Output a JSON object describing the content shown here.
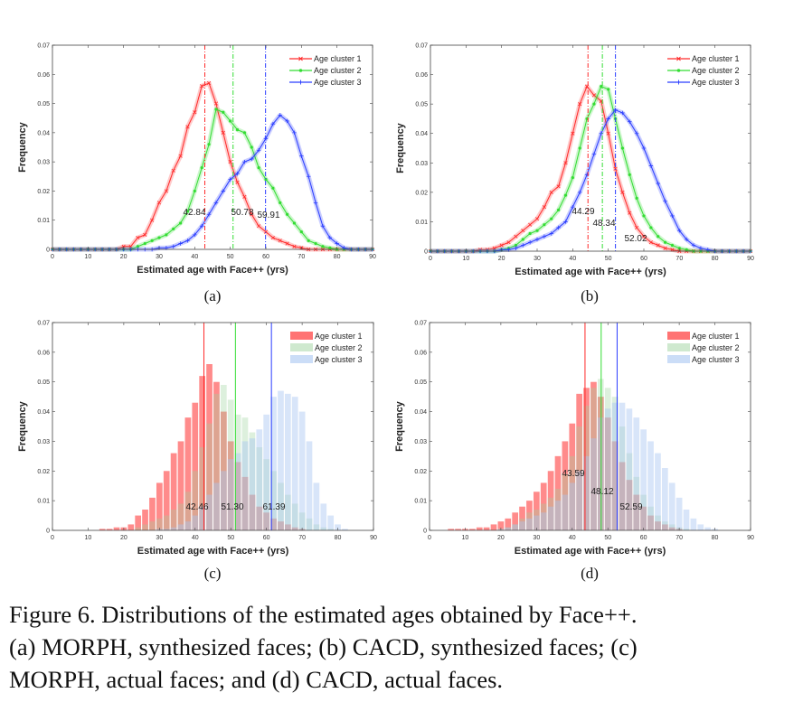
{
  "caption": {
    "lines": [
      "Figure 6. Distributions of the estimated ages obtained by Face++.",
      "(a) MORPH, synthesized faces; (b) CACD, synthesized faces; (c)",
      "MORPH, actual faces; and (d) CACD, actual faces."
    ]
  },
  "colors": {
    "cluster1": "#ff2a2a",
    "cluster2": "#33dd33",
    "cluster3": "#2a3dff"
  },
  "chart_data": [
    {
      "panel": "(a)",
      "type": "line",
      "xlabel": "Estimated age with Face++ (yrs)",
      "ylabel": "Frequency",
      "xlim": [
        0,
        90
      ],
      "ylim": [
        0,
        0.07
      ],
      "xticks": [
        "0",
        "10",
        "20",
        "30",
        "40",
        "50",
        "60",
        "70",
        "80",
        "90"
      ],
      "yticks": [
        "0",
        "0.01",
        "0.02",
        "0.03",
        "0.04",
        "0.05",
        "0.06",
        "0.07"
      ],
      "legend_position": "top-right",
      "x": [
        0,
        2,
        4,
        6,
        8,
        10,
        12,
        14,
        16,
        18,
        20,
        22,
        24,
        26,
        28,
        30,
        32,
        34,
        36,
        38,
        40,
        42,
        44,
        46,
        48,
        50,
        52,
        54,
        56,
        58,
        60,
        62,
        64,
        66,
        68,
        70,
        72,
        74,
        76,
        78,
        80,
        82,
        84,
        86,
        88,
        90
      ],
      "series": [
        {
          "name": "Age cluster 1",
          "marker": "x",
          "mean": "42.84",
          "values": [
            0,
            0,
            0,
            0,
            0,
            0,
            0,
            0,
            0,
            0,
            0.001,
            0.001,
            0.004,
            0.005,
            0.01,
            0.016,
            0.02,
            0.027,
            0.032,
            0.042,
            0.047,
            0.056,
            0.057,
            0.05,
            0.04,
            0.03,
            0.023,
            0.018,
            0.012,
            0.008,
            0.006,
            0.004,
            0.003,
            0.002,
            0.001,
            0.0005,
            0,
            0,
            0,
            0,
            0,
            0,
            0,
            0,
            0,
            0
          ]
        },
        {
          "name": "Age cluster 2",
          "marker": "dot",
          "mean": "50.78",
          "values": [
            0,
            0,
            0,
            0,
            0,
            0,
            0,
            0,
            0,
            0,
            0,
            0,
            0.001,
            0.002,
            0.003,
            0.004,
            0.005,
            0.007,
            0.009,
            0.013,
            0.02,
            0.028,
            0.036,
            0.048,
            0.047,
            0.044,
            0.041,
            0.04,
            0.035,
            0.028,
            0.024,
            0.021,
            0.016,
            0.012,
            0.009,
            0.006,
            0.003,
            0.002,
            0.001,
            0.0005,
            0,
            0,
            0,
            0,
            0,
            0
          ]
        },
        {
          "name": "Age cluster 3",
          "marker": "plus",
          "mean": "59.91",
          "values": [
            0,
            0,
            0,
            0,
            0,
            0,
            0,
            0,
            0,
            0,
            0,
            0,
            0,
            0,
            0,
            0.0005,
            0.0005,
            0.001,
            0.002,
            0.003,
            0.005,
            0.008,
            0.012,
            0.016,
            0.02,
            0.024,
            0.026,
            0.03,
            0.031,
            0.034,
            0.038,
            0.043,
            0.046,
            0.044,
            0.04,
            0.032,
            0.025,
            0.016,
            0.008,
            0.004,
            0.002,
            0.0005,
            0,
            0,
            0,
            0
          ]
        }
      ]
    },
    {
      "panel": "(b)",
      "type": "line",
      "xlabel": "Estimated age with Face++ (yrs)",
      "ylabel": "Frequency",
      "xlim": [
        0,
        90
      ],
      "ylim": [
        0,
        0.07
      ],
      "xticks": [
        "0",
        "10",
        "20",
        "30",
        "40",
        "50",
        "60",
        "70",
        "80",
        "90"
      ],
      "yticks": [
        "0",
        "0.01",
        "0.02",
        "0.03",
        "0.04",
        "0.05",
        "0.06",
        "0.07"
      ],
      "legend_position": "top-right",
      "x": [
        0,
        2,
        4,
        6,
        8,
        10,
        12,
        14,
        16,
        18,
        20,
        22,
        24,
        26,
        28,
        30,
        32,
        34,
        36,
        38,
        40,
        42,
        44,
        46,
        48,
        50,
        52,
        54,
        56,
        58,
        60,
        62,
        64,
        66,
        68,
        70,
        72,
        74,
        76,
        78,
        80,
        82,
        84,
        86,
        88,
        90
      ],
      "series": [
        {
          "name": "Age cluster 1",
          "marker": "x",
          "mean": "44.29",
          "values": [
            0,
            0,
            0,
            0,
            0,
            0,
            0,
            0.0005,
            0.0005,
            0.001,
            0.002,
            0.003,
            0.005,
            0.007,
            0.009,
            0.011,
            0.015,
            0.02,
            0.022,
            0.03,
            0.04,
            0.05,
            0.056,
            0.053,
            0.051,
            0.04,
            0.028,
            0.02,
            0.013,
            0.008,
            0.005,
            0.003,
            0.002,
            0.001,
            0.0005,
            0,
            0,
            0,
            0,
            0,
            0,
            0,
            0,
            0,
            0,
            0
          ]
        },
        {
          "name": "Age cluster 2",
          "marker": "dot",
          "mean": "48.34",
          "values": [
            0,
            0,
            0,
            0,
            0,
            0,
            0,
            0,
            0,
            0,
            0.0005,
            0.001,
            0.002,
            0.004,
            0.006,
            0.007,
            0.009,
            0.011,
            0.014,
            0.019,
            0.025,
            0.035,
            0.045,
            0.05,
            0.056,
            0.055,
            0.045,
            0.035,
            0.026,
            0.018,
            0.012,
            0.008,
            0.005,
            0.003,
            0.002,
            0.001,
            0.0005,
            0,
            0,
            0,
            0,
            0,
            0,
            0,
            0,
            0
          ]
        },
        {
          "name": "Age cluster 3",
          "marker": "plus",
          "mean": "52.02",
          "values": [
            0,
            0,
            0,
            0,
            0,
            0,
            0,
            0,
            0,
            0,
            0.0005,
            0.0005,
            0.001,
            0.002,
            0.003,
            0.004,
            0.005,
            0.006,
            0.008,
            0.01,
            0.015,
            0.02,
            0.026,
            0.033,
            0.04,
            0.045,
            0.048,
            0.047,
            0.044,
            0.04,
            0.035,
            0.029,
            0.023,
            0.017,
            0.012,
            0.007,
            0.004,
            0.002,
            0.001,
            0.0005,
            0,
            0,
            0,
            0,
            0,
            0
          ]
        }
      ]
    },
    {
      "panel": "(c)",
      "type": "bar",
      "xlabel": "Estimated age with Face++ (yrs)",
      "ylabel": "Frequency",
      "xlim": [
        0,
        90
      ],
      "ylim": [
        0,
        0.07
      ],
      "xticks": [
        "0",
        "10",
        "20",
        "30",
        "40",
        "50",
        "60",
        "70",
        "80",
        "90"
      ],
      "yticks": [
        "0",
        "0.01",
        "0.02",
        "0.03",
        "0.04",
        "0.05",
        "0.06",
        "0.07"
      ],
      "legend_position": "top-right",
      "x": [
        0,
        2,
        4,
        6,
        8,
        10,
        12,
        14,
        16,
        18,
        20,
        22,
        24,
        26,
        28,
        30,
        32,
        34,
        36,
        38,
        40,
        42,
        44,
        46,
        48,
        50,
        52,
        54,
        56,
        58,
        60,
        62,
        64,
        66,
        68,
        70,
        72,
        74,
        76,
        78,
        80,
        82,
        84,
        86,
        88,
        90
      ],
      "series": [
        {
          "name": "Age cluster 1",
          "mean": "42.46",
          "values": [
            0,
            0,
            0,
            0,
            0,
            0,
            0,
            0.0005,
            0.0005,
            0.001,
            0.001,
            0.002,
            0.005,
            0.007,
            0.011,
            0.016,
            0.02,
            0.026,
            0.03,
            0.038,
            0.043,
            0.052,
            0.056,
            0.05,
            0.04,
            0.03,
            0.023,
            0.018,
            0.012,
            0.008,
            0.006,
            0.004,
            0.003,
            0.002,
            0.001,
            0.0005,
            0,
            0,
            0,
            0,
            0,
            0,
            0,
            0,
            0,
            0
          ]
        },
        {
          "name": "Age cluster 2",
          "mean": "51.30",
          "values": [
            0,
            0,
            0,
            0,
            0,
            0,
            0,
            0,
            0,
            0,
            0,
            0,
            0.001,
            0.002,
            0.003,
            0.004,
            0.005,
            0.007,
            0.009,
            0.013,
            0.02,
            0.028,
            0.036,
            0.046,
            0.049,
            0.044,
            0.039,
            0.038,
            0.033,
            0.028,
            0.024,
            0.02,
            0.016,
            0.012,
            0.009,
            0.006,
            0.004,
            0.002,
            0.001,
            0.0005,
            0,
            0,
            0,
            0,
            0,
            0
          ]
        },
        {
          "name": "Age cluster 3",
          "mean": "61.39",
          "values": [
            0,
            0,
            0,
            0,
            0,
            0,
            0,
            0,
            0,
            0,
            0,
            0,
            0,
            0,
            0,
            0.0005,
            0.0005,
            0.001,
            0.002,
            0.003,
            0.005,
            0.008,
            0.012,
            0.016,
            0.02,
            0.024,
            0.026,
            0.03,
            0.031,
            0.034,
            0.039,
            0.045,
            0.047,
            0.046,
            0.045,
            0.04,
            0.03,
            0.016,
            0.009,
            0.005,
            0.002,
            0.0005,
            0,
            0,
            0,
            0
          ]
        }
      ]
    },
    {
      "panel": "(d)",
      "type": "bar",
      "xlabel": "Estimated age with Face++ (yrs)",
      "ylabel": "Frequency",
      "xlim": [
        0,
        90
      ],
      "ylim": [
        0,
        0.07
      ],
      "xticks": [
        "0",
        "10",
        "20",
        "30",
        "40",
        "50",
        "60",
        "70",
        "80",
        "90"
      ],
      "yticks": [
        "0",
        "0.01",
        "0.02",
        "0.03",
        "0.04",
        "0.05",
        "0.06",
        "0.07"
      ],
      "legend_position": "top-right",
      "x": [
        0,
        2,
        4,
        6,
        8,
        10,
        12,
        14,
        16,
        18,
        20,
        22,
        24,
        26,
        28,
        30,
        32,
        34,
        36,
        38,
        40,
        42,
        44,
        46,
        48,
        50,
        52,
        54,
        56,
        58,
        60,
        62,
        64,
        66,
        68,
        70,
        72,
        74,
        76,
        78,
        80,
        82,
        84,
        86,
        88,
        90
      ],
      "series": [
        {
          "name": "Age cluster 1",
          "mean": "43.59",
          "values": [
            0,
            0,
            0,
            0.0005,
            0.0005,
            0.0005,
            0.0005,
            0.001,
            0.001,
            0.002,
            0.003,
            0.004,
            0.006,
            0.008,
            0.01,
            0.013,
            0.016,
            0.02,
            0.025,
            0.03,
            0.036,
            0.046,
            0.048,
            0.05,
            0.045,
            0.038,
            0.03,
            0.023,
            0.017,
            0.012,
            0.008,
            0.005,
            0.003,
            0.002,
            0.001,
            0.0005,
            0,
            0,
            0,
            0,
            0,
            0,
            0,
            0,
            0,
            0
          ]
        },
        {
          "name": "Age cluster 2",
          "mean": "48.12",
          "values": [
            0,
            0,
            0,
            0,
            0,
            0,
            0,
            0,
            0,
            0,
            0.0005,
            0.001,
            0.002,
            0.004,
            0.006,
            0.007,
            0.009,
            0.011,
            0.014,
            0.019,
            0.025,
            0.035,
            0.042,
            0.048,
            0.051,
            0.048,
            0.045,
            0.035,
            0.026,
            0.018,
            0.012,
            0.008,
            0.005,
            0.003,
            0.002,
            0.001,
            0.0005,
            0,
            0,
            0,
            0,
            0,
            0,
            0,
            0,
            0
          ]
        },
        {
          "name": "Age cluster 3",
          "mean": "52.59",
          "values": [
            0,
            0,
            0,
            0,
            0,
            0,
            0,
            0,
            0,
            0,
            0.0005,
            0.001,
            0.002,
            0.003,
            0.004,
            0.005,
            0.006,
            0.008,
            0.01,
            0.012,
            0.016,
            0.02,
            0.025,
            0.031,
            0.038,
            0.041,
            0.043,
            0.043,
            0.041,
            0.038,
            0.034,
            0.03,
            0.026,
            0.021,
            0.016,
            0.011,
            0.007,
            0.004,
            0.002,
            0.001,
            0.0005,
            0,
            0,
            0,
            0,
            0
          ]
        }
      ]
    }
  ]
}
